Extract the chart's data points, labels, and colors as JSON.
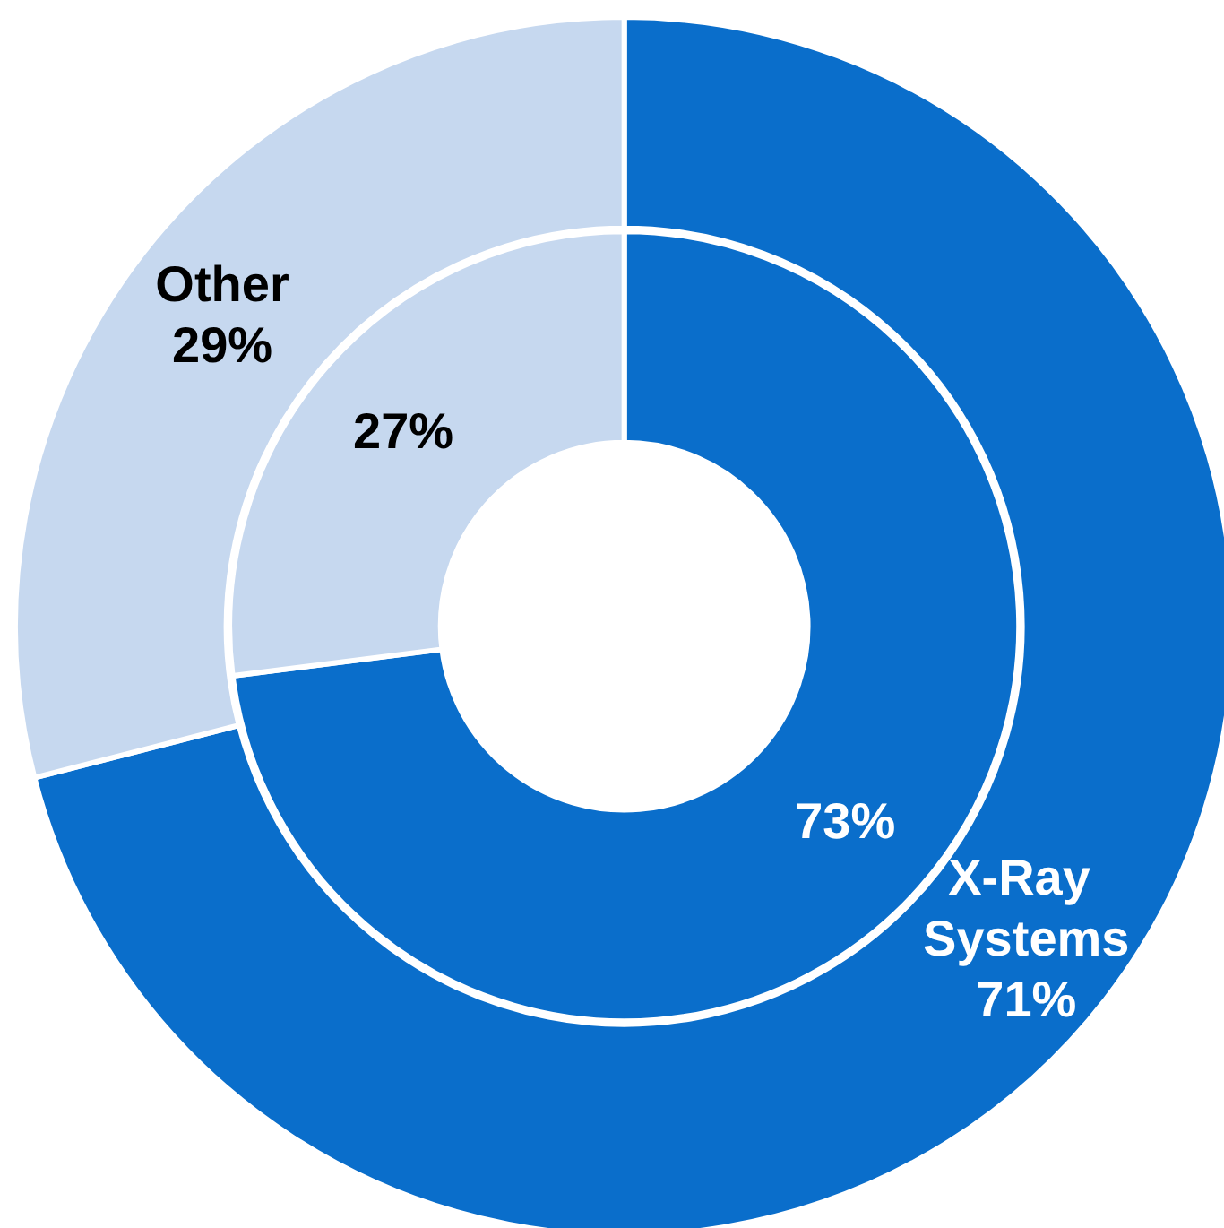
{
  "chart_data": {
    "type": "donut",
    "categories": [
      "X-Ray Systems",
      "Other"
    ],
    "series": [
      {
        "values": [
          73,
          27
        ],
        "colors": [
          "#0a6ecb",
          "#c6d8ef"
        ],
        "value_labels": [
          "73%",
          "27%"
        ]
      },
      {
        "values": [
          71,
          29
        ],
        "colors": [
          "#0a6ecb",
          "#c6d8ef"
        ],
        "value_labels": [
          "71%",
          "29%"
        ]
      }
    ]
  }
}
